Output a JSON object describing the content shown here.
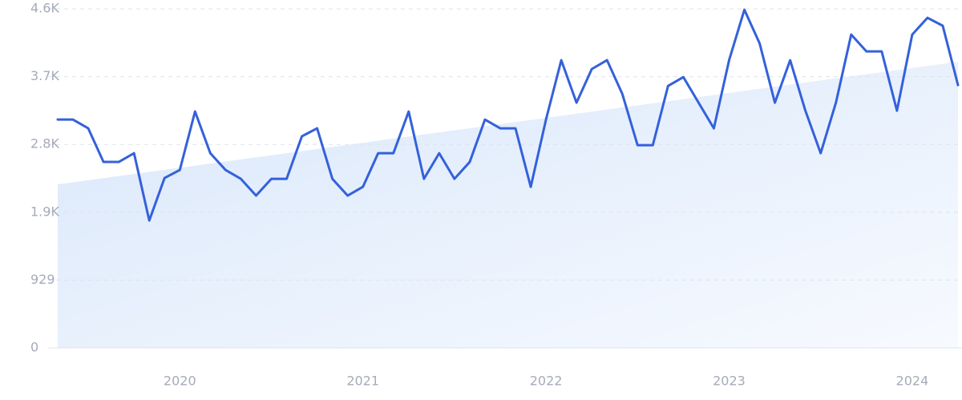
{
  "chart_data": {
    "type": "line",
    "categories": [
      null,
      null,
      null,
      null,
      null,
      null,
      null,
      null,
      "2020",
      null,
      null,
      null,
      null,
      null,
      null,
      null,
      null,
      null,
      null,
      null,
      "2021",
      null,
      null,
      null,
      null,
      null,
      null,
      null,
      null,
      null,
      null,
      null,
      "2022",
      null,
      null,
      null,
      null,
      null,
      null,
      null,
      null,
      null,
      null,
      null,
      "2023",
      null,
      null,
      null,
      null,
      null,
      null,
      null,
      null,
      null,
      null,
      null,
      "2024",
      null,
      null,
      null
    ],
    "series": [
      {
        "color": "#3461db",
        "values": [
          3128,
          3128,
          3008,
          2547,
          2547,
          2667,
          1745,
          2327,
          2437,
          3238,
          2667,
          2437,
          2316,
          2086,
          2316,
          2316,
          2898,
          3008,
          2316,
          2086,
          2206,
          2667,
          2667,
          3238,
          2316,
          2667,
          2316,
          2547,
          3128,
          3008,
          3008,
          2206,
          3128,
          3941,
          3359,
          3820,
          3941,
          3480,
          2777,
          2777,
          3589,
          3710,
          3359,
          3008,
          3941,
          4632,
          4171,
          3359,
          3941,
          3249,
          2667,
          3359,
          4292,
          4061,
          4061,
          3249,
          4292,
          4522,
          4413,
          3600
        ]
      }
    ],
    "trend_values": [
      2240,
      3920
    ],
    "ylim": [
      0,
      4645
    ],
    "yticks": [
      0,
      929,
      {
        "value": 1858,
        "label": "1.9K"
      },
      {
        "value": 2787,
        "label": "2.8K"
      },
      {
        "value": 3716,
        "label": "3.7K"
      },
      {
        "value": 4645,
        "label": "4.6K"
      }
    ],
    "grid": true
  }
}
